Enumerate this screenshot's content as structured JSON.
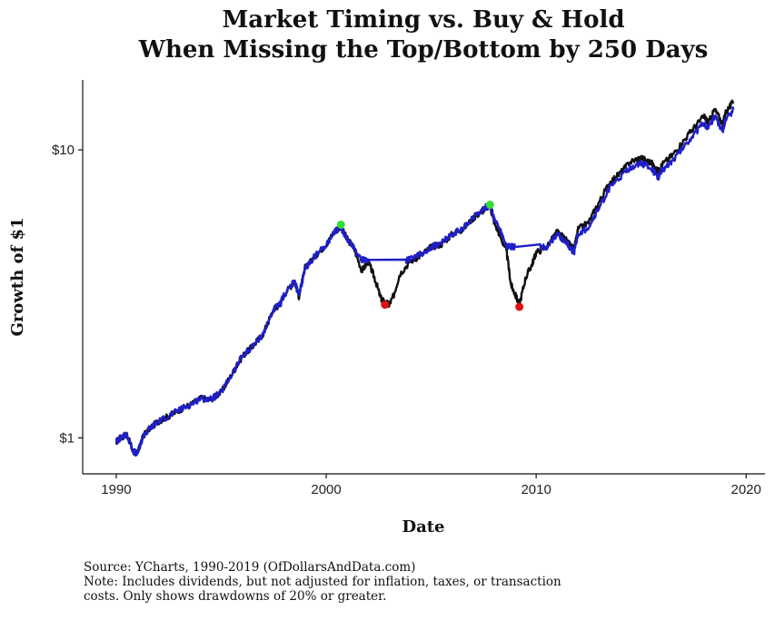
{
  "chart_data": {
    "type": "line",
    "title": [
      "Market Timing vs. Buy & Hold",
      "When Missing the Top/Bottom by 250 Days"
    ],
    "xlabel": "Date",
    "ylabel": "Growth of $1",
    "y_scale": "log",
    "xlim": [
      1988.4,
      2020.9
    ],
    "ylim": [
      0.75,
      17.5
    ],
    "x_ticks": [
      1990,
      2000,
      2010,
      2020
    ],
    "y_ticks": [
      {
        "value": 1,
        "label": "$1"
      },
      {
        "value": 10,
        "label": "$10"
      }
    ],
    "grid": false,
    "legend": "none",
    "colors": {
      "buy_hold": "#111111",
      "market_timing": "#1f1fc8",
      "peak_marker": "#33dd33",
      "trough_marker": "#dd1111"
    },
    "series": [
      {
        "key": "buy_hold",
        "x": [
          1990.0,
          1990.2,
          1990.5,
          1990.8,
          1991.0,
          1991.3,
          1991.6,
          1992.0,
          1992.5,
          1993.0,
          1993.5,
          1994.0,
          1994.5,
          1995.0,
          1995.5,
          1996.0,
          1996.5,
          1997.0,
          1997.5,
          1997.8,
          1998.0,
          1998.5,
          1998.7,
          1999.0,
          1999.5,
          2000.0,
          2000.4,
          2000.7,
          2001.0,
          2001.3,
          2001.7,
          2002.0,
          2002.3,
          2002.6,
          2002.8,
          2003.0,
          2003.2,
          2003.5,
          2004.0,
          2004.5,
          2005.0,
          2005.5,
          2006.0,
          2006.5,
          2007.0,
          2007.4,
          2007.8,
          2008.0,
          2008.3,
          2008.6,
          2008.8,
          2009.0,
          2009.2,
          2009.5,
          2009.8,
          2010.0,
          2010.5,
          2011.0,
          2011.5,
          2011.8,
          2012.0,
          2012.5,
          2013.0,
          2013.5,
          2014.0,
          2014.5,
          2015.0,
          2015.5,
          2015.8,
          2016.0,
          2016.5,
          2017.0,
          2017.5,
          2018.0,
          2018.2,
          2018.5,
          2018.9,
          2019.0,
          2019.4
        ],
        "y": [
          0.97,
          1.0,
          1.03,
          0.9,
          0.88,
          1.02,
          1.08,
          1.14,
          1.19,
          1.25,
          1.3,
          1.37,
          1.36,
          1.44,
          1.66,
          1.92,
          2.08,
          2.3,
          2.8,
          2.9,
          3.15,
          3.5,
          3.1,
          3.9,
          4.3,
          4.7,
          5.2,
          5.4,
          4.9,
          4.6,
          3.8,
          4.1,
          3.6,
          3.05,
          2.95,
          2.9,
          3.1,
          3.7,
          4.1,
          4.3,
          4.6,
          4.7,
          5.1,
          5.3,
          5.8,
          6.1,
          6.4,
          5.6,
          5.0,
          4.4,
          3.4,
          3.15,
          2.9,
          3.6,
          4.0,
          4.4,
          4.6,
          5.2,
          4.8,
          4.5,
          5.3,
          5.6,
          6.6,
          7.7,
          8.3,
          9.1,
          9.4,
          9.0,
          8.4,
          8.9,
          9.6,
          10.7,
          11.9,
          13.1,
          12.4,
          13.8,
          12.3,
          13.4,
          14.7
        ]
      },
      {
        "key": "market_timing",
        "x": [
          1990.0,
          1990.2,
          1990.5,
          1990.8,
          1991.0,
          1991.3,
          1991.6,
          1992.0,
          1992.5,
          1993.0,
          1993.5,
          1994.0,
          1994.5,
          1995.0,
          1995.5,
          1996.0,
          1996.5,
          1997.0,
          1997.5,
          1997.8,
          1998.0,
          1998.5,
          1998.7,
          1999.0,
          1999.5,
          2000.0,
          2000.4,
          2000.7,
          2001.0,
          2001.3,
          2001.7,
          2002.0,
          2003.8,
          2004.0,
          2004.5,
          2005.0,
          2005.5,
          2006.0,
          2006.5,
          2007.0,
          2007.4,
          2007.8,
          2008.0,
          2008.3,
          2008.6,
          2008.8,
          2009.0,
          2010.2,
          2010.5,
          2011.0,
          2011.5,
          2011.8,
          2012.0,
          2012.5,
          2013.0,
          2013.5,
          2014.0,
          2014.5,
          2015.0,
          2015.5,
          2015.8,
          2016.0,
          2016.5,
          2017.0,
          2017.5,
          2018.0,
          2018.2,
          2018.5,
          2018.9,
          2019.0,
          2019.4
        ],
        "y": [
          0.97,
          1.0,
          1.03,
          0.9,
          0.88,
          1.02,
          1.08,
          1.14,
          1.19,
          1.25,
          1.3,
          1.37,
          1.36,
          1.44,
          1.66,
          1.92,
          2.08,
          2.3,
          2.8,
          2.9,
          3.15,
          3.5,
          3.1,
          3.9,
          4.3,
          4.7,
          5.2,
          5.4,
          4.9,
          4.6,
          4.15,
          4.15,
          4.15,
          4.15,
          4.35,
          4.6,
          4.75,
          5.1,
          5.3,
          5.85,
          6.2,
          6.45,
          5.8,
          5.2,
          4.6,
          4.6,
          4.6,
          4.6,
          4.6,
          5.1,
          4.7,
          4.4,
          5.1,
          5.4,
          6.3,
          7.4,
          8.0,
          8.7,
          9.0,
          8.6,
          8.0,
          8.5,
          9.2,
          10.2,
          11.3,
          12.4,
          11.8,
          13.1,
          11.6,
          12.6,
          13.8
        ]
      }
    ],
    "markers": [
      {
        "kind": "top",
        "x": 2000.7,
        "y": 5.5
      },
      {
        "kind": "bottom",
        "x": 2002.8,
        "y": 2.9
      },
      {
        "kind": "top",
        "x": 2007.8,
        "y": 6.45
      },
      {
        "kind": "bottom",
        "x": 2009.2,
        "y": 2.85
      }
    ]
  },
  "footer": {
    "source": "Source:  YCharts, 1990-2019 (OfDollarsAndData.com)",
    "note_line1": "Note: Includes dividends, but not adjusted for inflation, taxes, or transaction",
    "note_line2": "costs. Only shows drawdowns of 20% or greater."
  }
}
